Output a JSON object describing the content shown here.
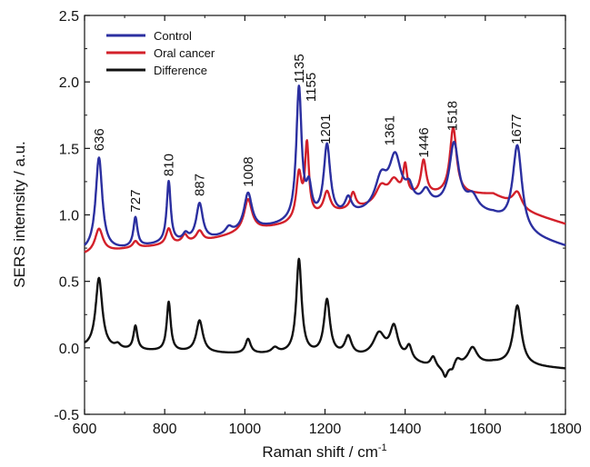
{
  "chart_data": {
    "type": "line",
    "xlabel": "Raman shift / cm",
    "xlabel_superscript": "-1",
    "ylabel": "SERS internsity / a.u.",
    "xlim": [
      600,
      1800
    ],
    "ylim": [
      -0.5,
      2.5
    ],
    "x_ticks": [
      600,
      800,
      1000,
      1200,
      1400,
      1600,
      1800
    ],
    "y_ticks": [
      -0.5,
      0.0,
      0.5,
      1.0,
      1.5,
      2.0,
      2.5
    ],
    "x_tick_labels": [
      "600",
      "800",
      "1000",
      "1200",
      "1400",
      "1600",
      "1800"
    ],
    "y_tick_labels": [
      "-0.5",
      "0.0",
      "0.5",
      "1.0",
      "1.5",
      "2.0",
      "2.5"
    ],
    "grid": false,
    "legend_position": "top-left",
    "peak_labels": [
      {
        "text": "636",
        "x": 636,
        "y": 1.48
      },
      {
        "text": "727",
        "x": 727,
        "y": 1.02
      },
      {
        "text": "810",
        "x": 810,
        "y": 1.29
      },
      {
        "text": "887",
        "x": 887,
        "y": 1.14
      },
      {
        "text": "1008",
        "x": 1008,
        "y": 1.21
      },
      {
        "text": "1135",
        "x": 1135,
        "y": 1.99
      },
      {
        "text": "1155",
        "x": 1165,
        "y": 1.85
      },
      {
        "text": "1201",
        "x": 1201,
        "y": 1.53
      },
      {
        "text": "1361",
        "x": 1361,
        "y": 1.52
      },
      {
        "text": "1446",
        "x": 1446,
        "y": 1.43
      },
      {
        "text": "1518",
        "x": 1518,
        "y": 1.63
      },
      {
        "text": "1677",
        "x": 1677,
        "y": 1.53
      }
    ],
    "series": [
      {
        "name": "Control",
        "color": "#2b2fa0",
        "baseline": [
          [
            600,
            0.72
          ],
          [
            700,
            0.74
          ],
          [
            800,
            0.78
          ],
          [
            900,
            0.8
          ],
          [
            1000,
            0.87
          ],
          [
            1100,
            0.92
          ],
          [
            1200,
            0.95
          ],
          [
            1300,
            1.0
          ],
          [
            1400,
            1.06
          ],
          [
            1500,
            1.05
          ],
          [
            1550,
            1.03
          ],
          [
            1620,
            0.98
          ],
          [
            1700,
            0.84
          ],
          [
            1800,
            0.76
          ]
        ],
        "peaks": [
          {
            "center": 636,
            "height": 0.7,
            "width": 10
          },
          {
            "center": 727,
            "height": 0.22,
            "width": 6
          },
          {
            "center": 810,
            "height": 0.46,
            "width": 6
          },
          {
            "center": 852,
            "height": 0.05,
            "width": 8
          },
          {
            "center": 887,
            "height": 0.28,
            "width": 10
          },
          {
            "center": 960,
            "height": 0.05,
            "width": 10
          },
          {
            "center": 1008,
            "height": 0.28,
            "width": 12
          },
          {
            "center": 1135,
            "height": 1.0,
            "width": 8
          },
          {
            "center": 1160,
            "height": 0.22,
            "width": 8
          },
          {
            "center": 1205,
            "height": 0.55,
            "width": 10
          },
          {
            "center": 1258,
            "height": 0.12,
            "width": 10
          },
          {
            "center": 1340,
            "height": 0.22,
            "width": 18
          },
          {
            "center": 1375,
            "height": 0.36,
            "width": 18
          },
          {
            "center": 1410,
            "height": 0.1,
            "width": 10
          },
          {
            "center": 1452,
            "height": 0.1,
            "width": 12
          },
          {
            "center": 1522,
            "height": 0.48,
            "width": 14
          },
          {
            "center": 1568,
            "height": 0.1,
            "width": 16
          },
          {
            "center": 1680,
            "height": 0.64,
            "width": 14
          }
        ]
      },
      {
        "name": "Oral cancer",
        "color": "#d3202a",
        "baseline": [
          [
            600,
            0.7
          ],
          [
            700,
            0.74
          ],
          [
            800,
            0.77
          ],
          [
            900,
            0.8
          ],
          [
            1000,
            0.87
          ],
          [
            1100,
            0.92
          ],
          [
            1200,
            1.0
          ],
          [
            1300,
            1.05
          ],
          [
            1400,
            1.12
          ],
          [
            1500,
            1.15
          ],
          [
            1550,
            1.15
          ],
          [
            1620,
            1.15
          ],
          [
            1700,
            1.02
          ],
          [
            1800,
            0.93
          ]
        ],
        "peaks": [
          {
            "center": 636,
            "height": 0.18,
            "width": 12
          },
          {
            "center": 727,
            "height": 0.05,
            "width": 8
          },
          {
            "center": 810,
            "height": 0.12,
            "width": 8
          },
          {
            "center": 850,
            "height": 0.06,
            "width": 8
          },
          {
            "center": 887,
            "height": 0.08,
            "width": 10
          },
          {
            "center": 1008,
            "height": 0.24,
            "width": 12
          },
          {
            "center": 1135,
            "height": 0.34,
            "width": 8
          },
          {
            "center": 1155,
            "height": 0.54,
            "width": 6
          },
          {
            "center": 1205,
            "height": 0.16,
            "width": 10
          },
          {
            "center": 1270,
            "height": 0.12,
            "width": 8
          },
          {
            "center": 1340,
            "height": 0.12,
            "width": 16
          },
          {
            "center": 1372,
            "height": 0.14,
            "width": 16
          },
          {
            "center": 1400,
            "height": 0.22,
            "width": 6
          },
          {
            "center": 1446,
            "height": 0.26,
            "width": 8
          },
          {
            "center": 1520,
            "height": 0.5,
            "width": 10
          },
          {
            "center": 1680,
            "height": 0.12,
            "width": 14
          }
        ]
      },
      {
        "name": "Difference",
        "color": "#111111",
        "baseline": [
          [
            600,
            0.0
          ],
          [
            700,
            -0.02
          ],
          [
            800,
            -0.03
          ],
          [
            900,
            -0.04
          ],
          [
            1000,
            -0.05
          ],
          [
            1100,
            -0.05
          ],
          [
            1200,
            -0.06
          ],
          [
            1300,
            -0.08
          ],
          [
            1400,
            -0.1
          ],
          [
            1450,
            -0.14
          ],
          [
            1500,
            -0.18
          ],
          [
            1550,
            -0.14
          ],
          [
            1620,
            -0.12
          ],
          [
            1700,
            -0.14
          ],
          [
            1800,
            -0.16
          ]
        ],
        "peaks": [
          {
            "center": 636,
            "height": 0.53,
            "width": 10
          },
          {
            "center": 683,
            "height": 0.03,
            "width": 8
          },
          {
            "center": 727,
            "height": 0.18,
            "width": 6
          },
          {
            "center": 810,
            "height": 0.37,
            "width": 6
          },
          {
            "center": 887,
            "height": 0.24,
            "width": 10
          },
          {
            "center": 1008,
            "height": 0.11,
            "width": 8
          },
          {
            "center": 1075,
            "height": 0.04,
            "width": 10
          },
          {
            "center": 1135,
            "height": 0.71,
            "width": 8
          },
          {
            "center": 1205,
            "height": 0.41,
            "width": 9
          },
          {
            "center": 1258,
            "height": 0.14,
            "width": 10
          },
          {
            "center": 1335,
            "height": 0.18,
            "width": 18
          },
          {
            "center": 1372,
            "height": 0.23,
            "width": 12
          },
          {
            "center": 1410,
            "height": 0.1,
            "width": 8
          },
          {
            "center": 1470,
            "height": 0.08,
            "width": 8
          },
          {
            "center": 1530,
            "height": 0.06,
            "width": 10
          },
          {
            "center": 1568,
            "height": 0.13,
            "width": 14
          },
          {
            "center": 1680,
            "height": 0.45,
            "width": 12
          }
        ],
        "dips": [
          {
            "center": 1500,
            "depth": 0.06,
            "width": 6
          },
          {
            "center": 1518,
            "depth": 0.03,
            "width": 5
          }
        ]
      }
    ]
  }
}
